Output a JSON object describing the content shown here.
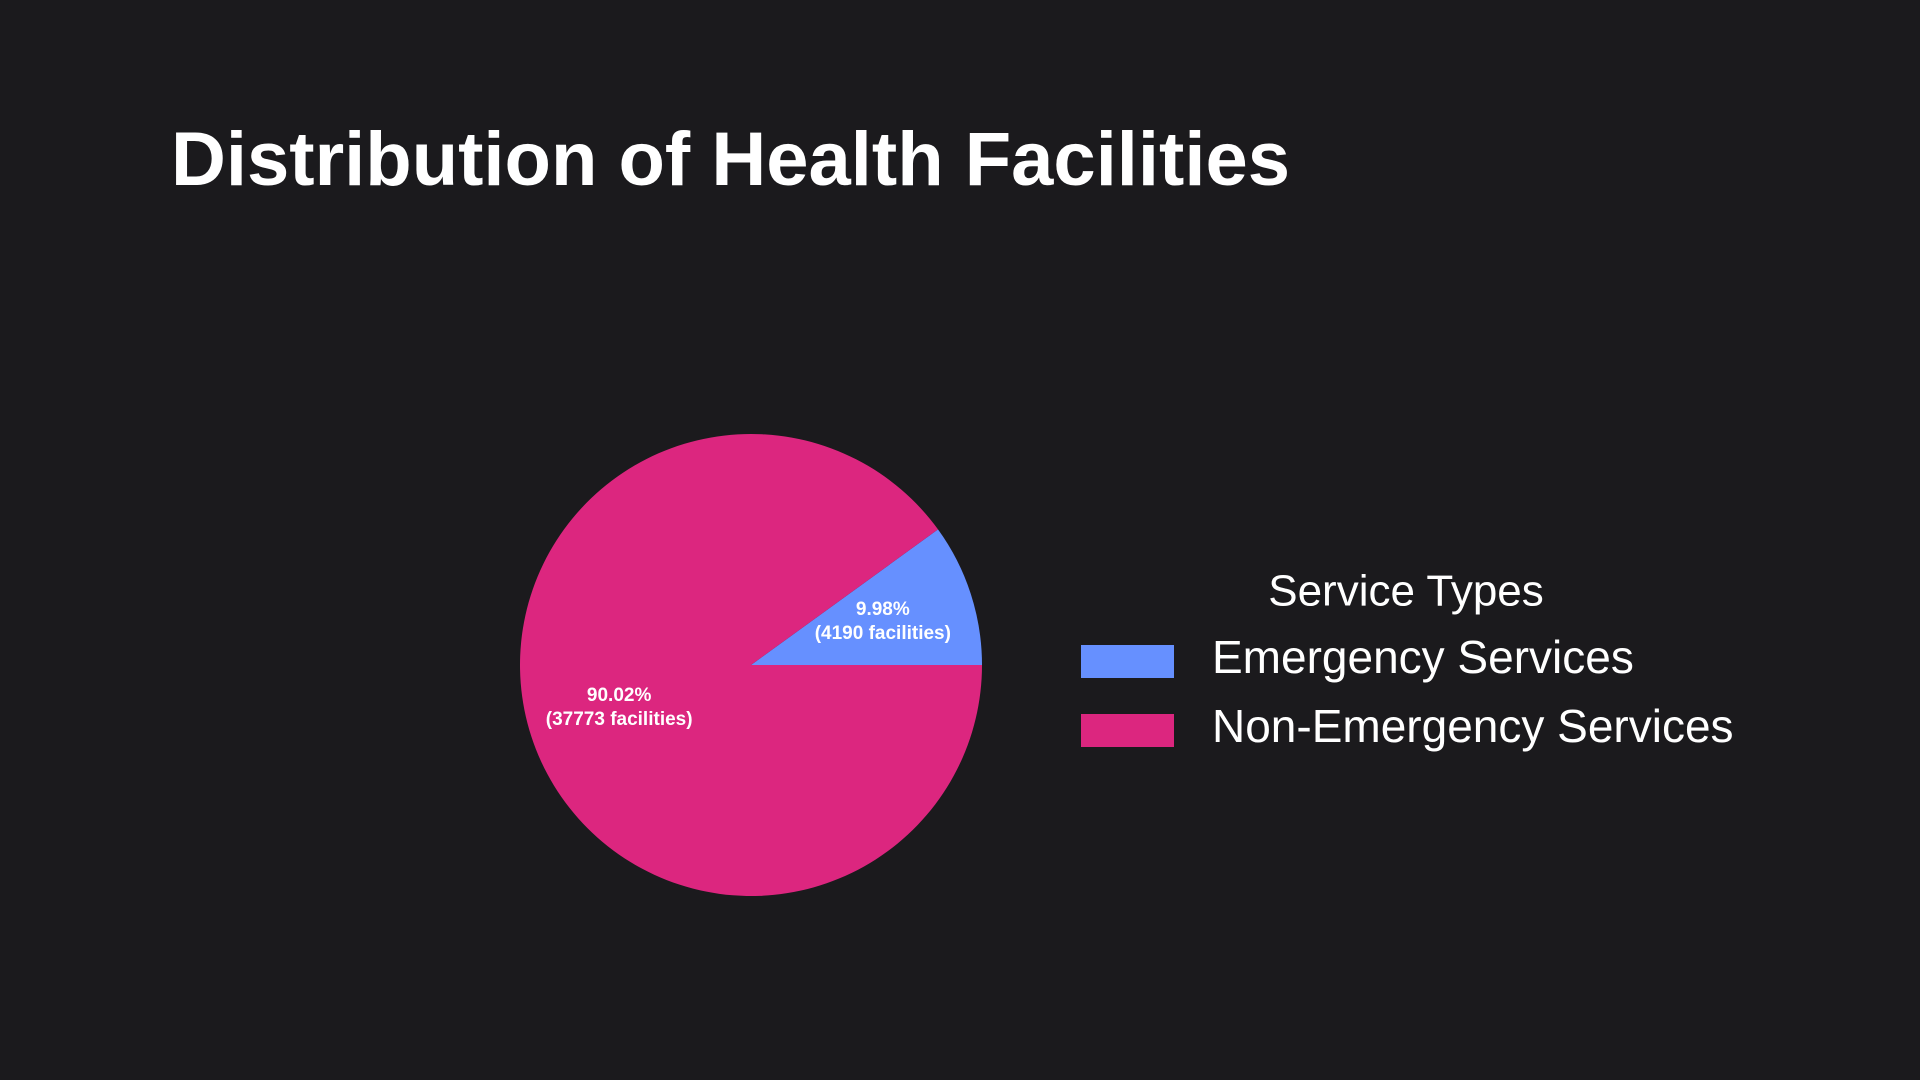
{
  "chart_data": {
    "type": "pie",
    "title": "Distribution of Health Facilities",
    "categories": [
      "Emergency Services",
      "Non-Emergency Services"
    ],
    "values": [
      4190,
      37773
    ],
    "value_labels": [
      [
        "9.98%",
        "(4190 facilities)"
      ],
      [
        "90.02%",
        "(37773 facilities)"
      ]
    ],
    "colors": [
      "#6690ff",
      "#dc267f"
    ],
    "legend_title": "Service Types",
    "legend": "right"
  }
}
